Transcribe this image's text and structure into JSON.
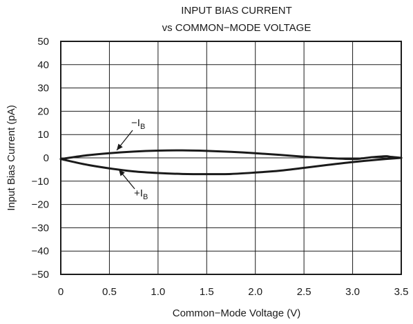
{
  "chart_data": {
    "type": "line",
    "title": [
      "INPUT BIAS CURRENT",
      "vs COMMON−MODE VOLTAGE"
    ],
    "xlabel": "Common−Mode Voltage (V)",
    "ylabel": "Input Bias Current (pA)",
    "xlim": [
      0,
      3.5
    ],
    "ylim": [
      -50,
      50
    ],
    "x_ticks": [
      0,
      0.5,
      1,
      1.5,
      2,
      2.5,
      3,
      3.5
    ],
    "x_tick_labels": [
      "0",
      "0.5",
      "1.0",
      "1.5",
      "2.0",
      "2.5",
      "3.0",
      "3.5"
    ],
    "y_ticks": [
      50,
      40,
      30,
      20,
      10,
      0,
      -10,
      -20,
      -30,
      -40,
      -50
    ],
    "y_tick_labels": [
      "50",
      "40",
      "30",
      "20",
      "10",
      "0",
      "−10",
      "−20",
      "−30",
      "−40",
      "−50"
    ],
    "grid": true,
    "series": [
      {
        "name": "−I_B",
        "label_main": "−I",
        "label_sub": "B",
        "x": [
          0,
          0.25,
          0.5,
          0.75,
          1.0,
          1.25,
          1.5,
          1.75,
          2.0,
          2.25,
          2.5,
          2.75,
          3.0,
          3.1,
          3.2,
          3.3,
          3.35,
          3.4,
          3.5
        ],
        "y": [
          -0.5,
          1.0,
          2.0,
          2.7,
          3.1,
          3.2,
          3.0,
          2.6,
          2.0,
          1.3,
          0.5,
          -0.1,
          -0.5,
          -0.2,
          0.3,
          0.6,
          0.7,
          0.4,
          0
        ]
      },
      {
        "name": "+I_B",
        "label_main": "+I",
        "label_sub": "B",
        "x": [
          0,
          0.25,
          0.5,
          0.75,
          1.0,
          1.25,
          1.5,
          1.75,
          2.0,
          2.25,
          2.5,
          2.75,
          3.0,
          3.25,
          3.5
        ],
        "y": [
          -0.5,
          -2.8,
          -4.5,
          -5.8,
          -6.5,
          -6.9,
          -7.0,
          -6.9,
          -6.3,
          -5.5,
          -4.3,
          -3.0,
          -1.8,
          -0.8,
          0
        ]
      }
    ]
  }
}
